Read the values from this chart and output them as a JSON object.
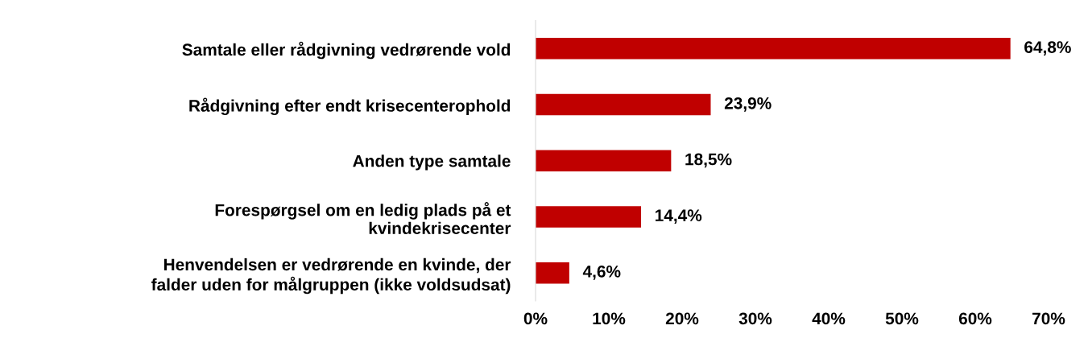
{
  "chart_data": {
    "type": "bar",
    "orientation": "horizontal",
    "categories": [
      "Samtale eller rådgivning vedrørende vold",
      "Rådgivning efter endt krisecenterophold",
      "Anden type samtale",
      "Forespørgsel om en ledig plads på et\nkvindekrisecenter",
      "Henvendelsen er vedrørende en kvinde, der\nfalder uden for målgruppen (ikke voldsudsat)"
    ],
    "values": [
      64.8,
      23.9,
      18.5,
      14.4,
      4.6
    ],
    "value_labels": [
      "64,8%",
      "23,9%",
      "18,5%",
      "14,4%",
      "4,6%"
    ],
    "color": "#c00000",
    "xlim": [
      0,
      70
    ],
    "xticks": [
      {
        "value": 0,
        "label": "0%"
      },
      {
        "value": 10,
        "label": "10%"
      },
      {
        "value": 20,
        "label": "20%"
      },
      {
        "value": 30,
        "label": "30%"
      },
      {
        "value": 40,
        "label": "40%"
      },
      {
        "value": 50,
        "label": "50%"
      },
      {
        "value": 60,
        "label": "60%"
      },
      {
        "value": 70,
        "label": "70%"
      }
    ],
    "grid": false,
    "legend": false
  }
}
